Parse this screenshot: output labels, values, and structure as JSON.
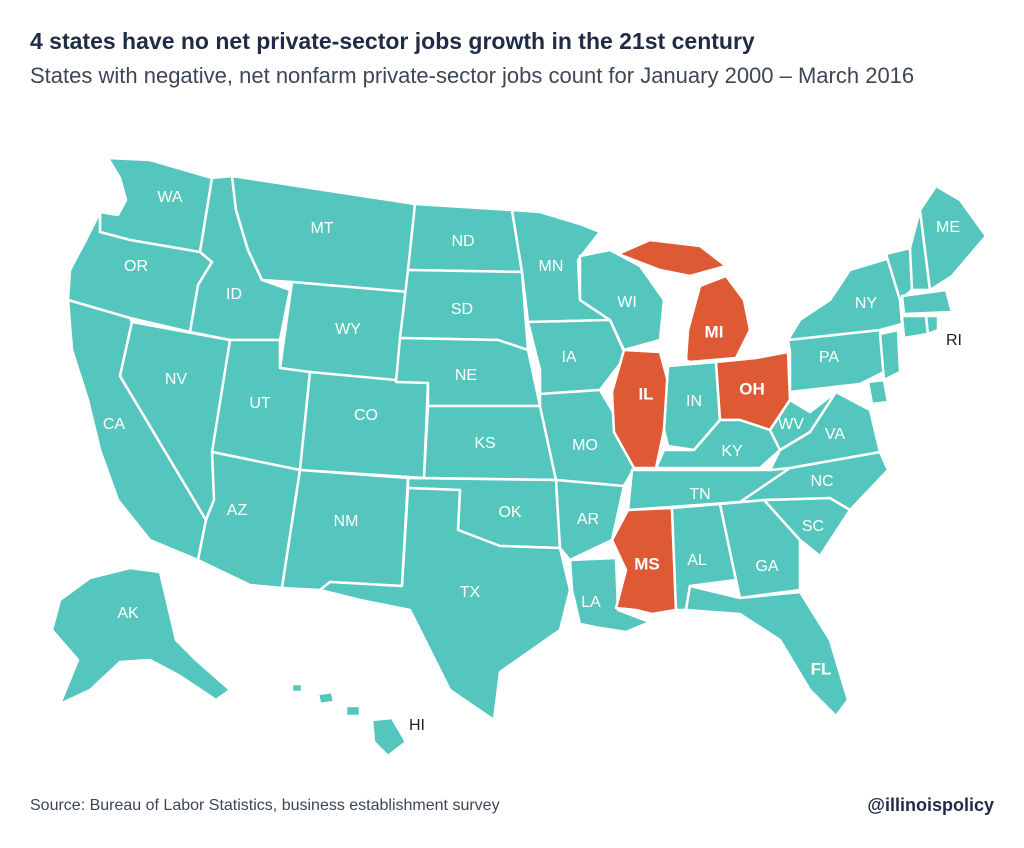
{
  "header": {
    "title": "4 states have no net private-sector jobs growth in the 21st century",
    "subtitle": "States with negative, net nonfarm private-sector jobs count for January 2000 – March 2016"
  },
  "map": {
    "colors": {
      "default": "#55c6bd",
      "negative": "#dd5a35",
      "border": "#ffffff"
    },
    "negative_states": [
      "IL",
      "MI",
      "OH",
      "MS"
    ],
    "bold_labels": [
      "IL",
      "MI",
      "OH",
      "MS",
      "FL"
    ],
    "labels": {
      "WA": "WA",
      "OR": "OR",
      "CA": "CA",
      "NV": "NV",
      "ID": "ID",
      "MT": "MT",
      "WY": "WY",
      "UT": "UT",
      "AZ": "AZ",
      "CO": "CO",
      "NM": "NM",
      "ND": "ND",
      "SD": "SD",
      "NE": "NE",
      "KS": "KS",
      "OK": "OK",
      "TX": "TX",
      "MN": "MN",
      "IA": "IA",
      "MO": "MO",
      "AR": "AR",
      "LA": "LA",
      "WI": "WI",
      "IL": "IL",
      "MI": "MI",
      "IN": "IN",
      "OH": "OH",
      "KY": "KY",
      "TN": "TN",
      "MS": "MS",
      "AL": "AL",
      "GA": "GA",
      "FL": "FL",
      "SC": "SC",
      "NC": "NC",
      "VA": "VA",
      "WV": "WV",
      "PA": "PA",
      "NY": "NY",
      "ME": "ME",
      "RI": "RI",
      "AK": "AK",
      "HI": "HI"
    }
  },
  "footer": {
    "source": "Source: Bureau of Labor Statistics, business establishment survey",
    "handle": "@illinoispolicy"
  }
}
